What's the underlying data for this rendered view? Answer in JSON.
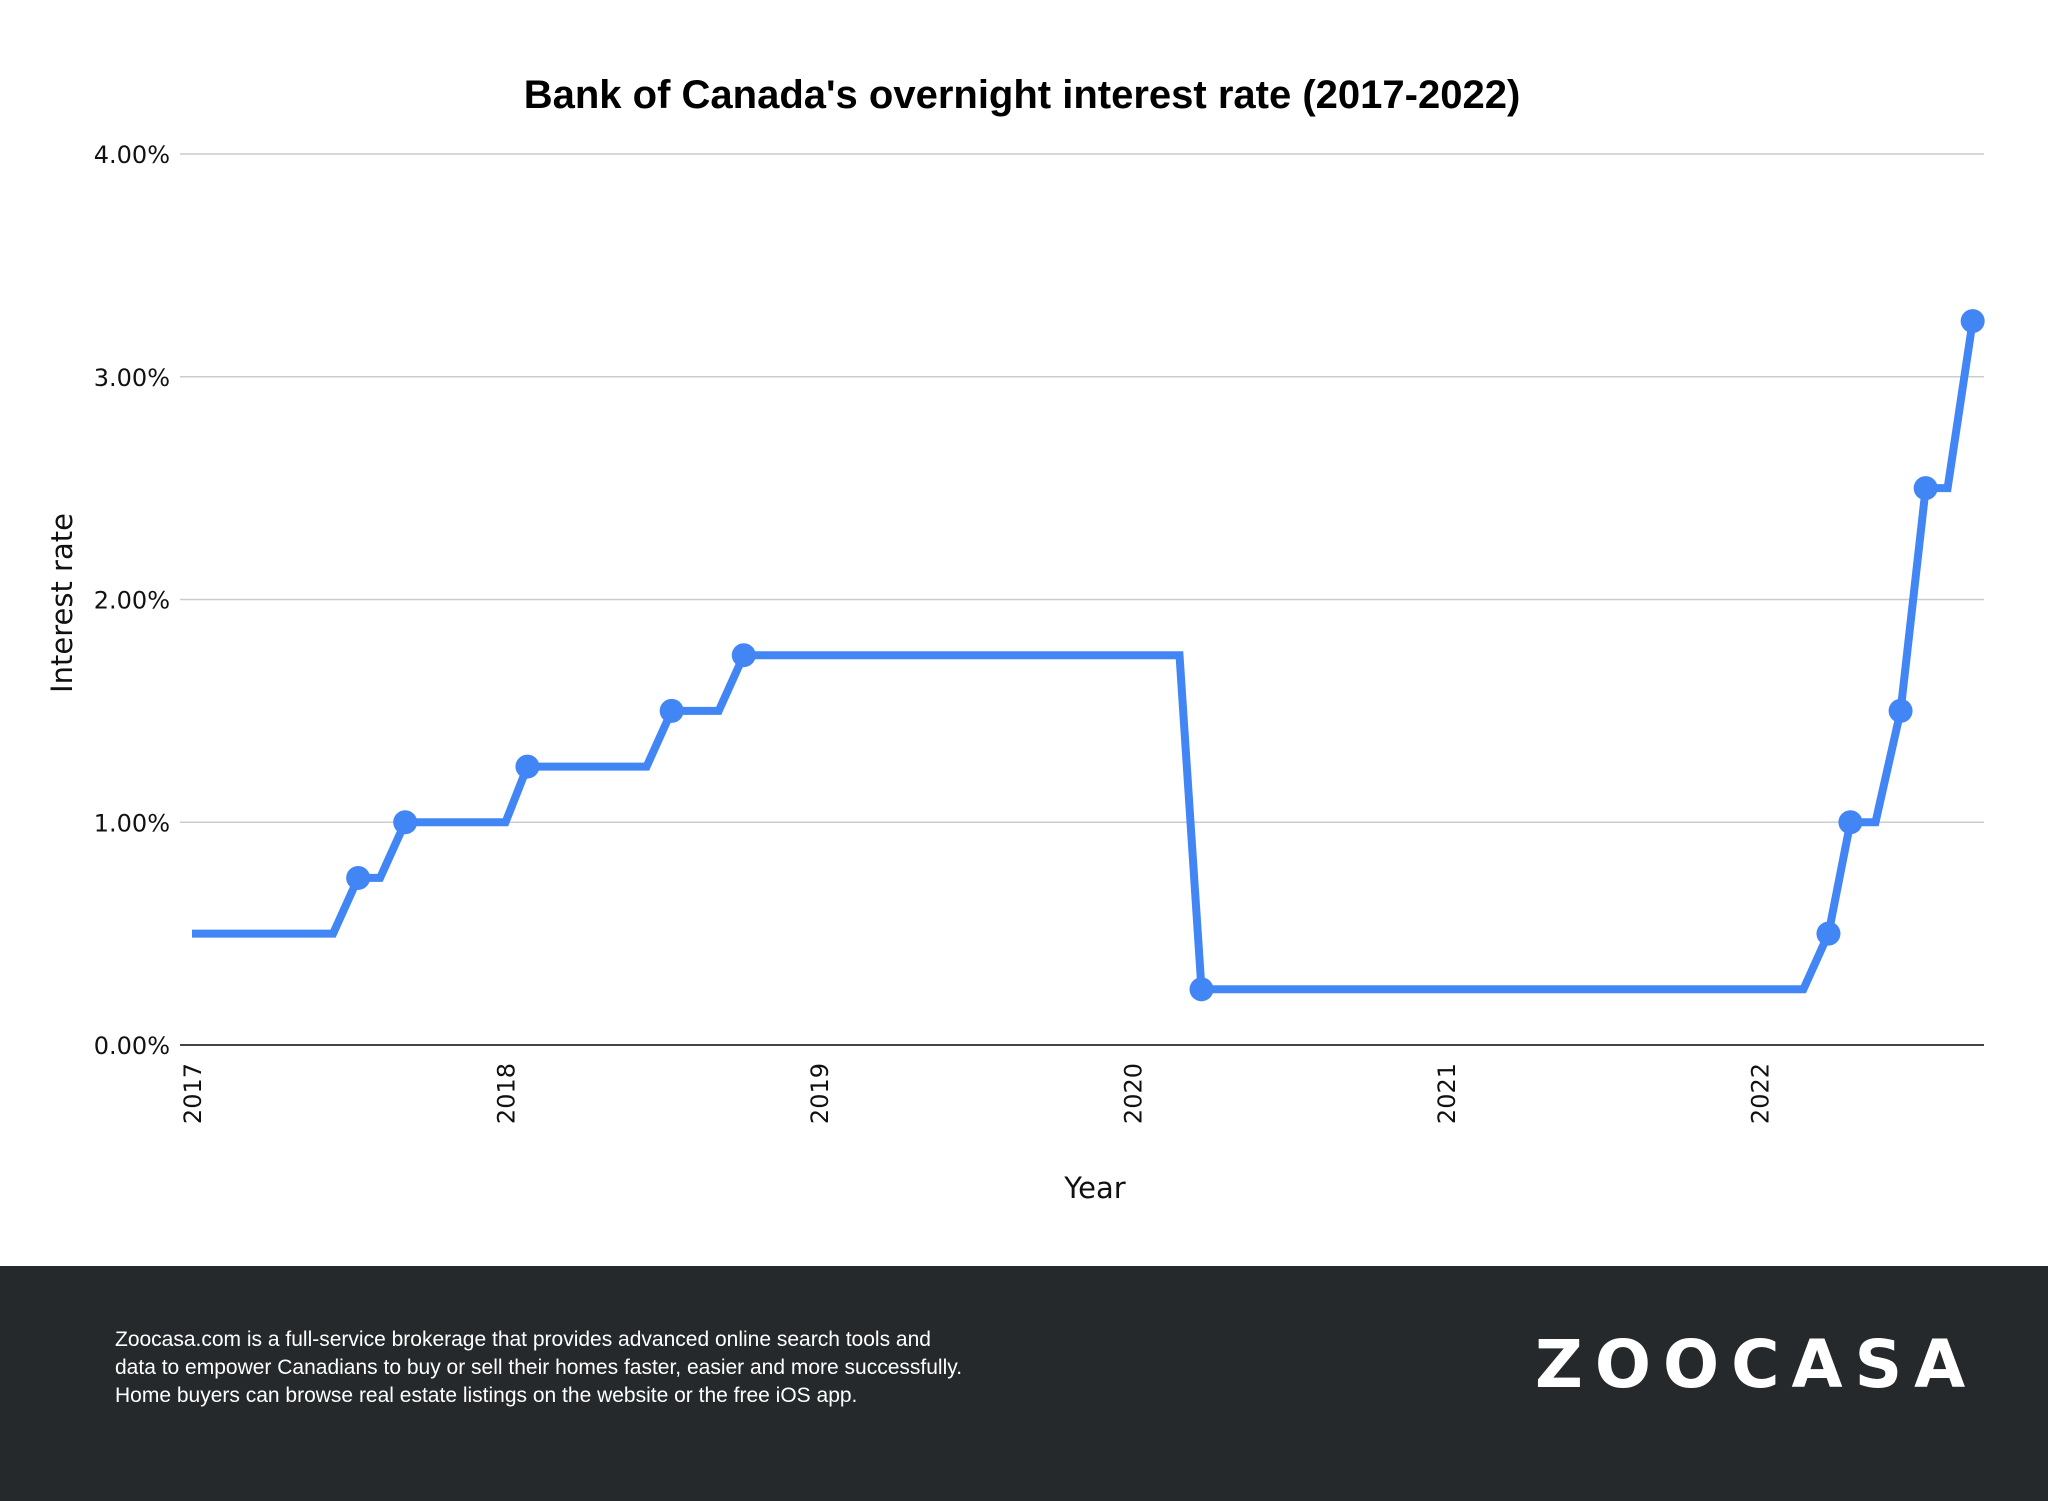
{
  "chart_data": {
    "type": "line",
    "title": "Bank of Canada's overnight interest rate (2017-2022)",
    "xlabel": "Year",
    "ylabel": "Interest rate",
    "xlim": [
      2017,
      2022.72
    ],
    "ylim": [
      0,
      4
    ],
    "x_ticks": [
      "2017",
      "2018",
      "2019",
      "2020",
      "2021",
      "2022"
    ],
    "y_ticks": [
      "0.00%",
      "1.00%",
      "2.00%",
      "3.00%",
      "4.00%"
    ],
    "grid": "horizontal",
    "color": "#4285f4",
    "points": [
      {
        "x": 2017.0,
        "y": 0.5,
        "marker": false
      },
      {
        "x": 2017.45,
        "y": 0.5,
        "marker": false
      },
      {
        "x": 2017.53,
        "y": 0.75,
        "marker": true
      },
      {
        "x": 2017.6,
        "y": 0.75,
        "marker": false
      },
      {
        "x": 2017.68,
        "y": 1.0,
        "marker": true
      },
      {
        "x": 2018.0,
        "y": 1.0,
        "marker": false
      },
      {
        "x": 2018.07,
        "y": 1.25,
        "marker": true
      },
      {
        "x": 2018.45,
        "y": 1.25,
        "marker": false
      },
      {
        "x": 2018.53,
        "y": 1.5,
        "marker": true
      },
      {
        "x": 2018.68,
        "y": 1.5,
        "marker": false
      },
      {
        "x": 2018.76,
        "y": 1.75,
        "marker": true
      },
      {
        "x": 2020.15,
        "y": 1.75,
        "marker": false
      },
      {
        "x": 2020.22,
        "y": 0.25,
        "marker": true
      },
      {
        "x": 2022.14,
        "y": 0.25,
        "marker": false
      },
      {
        "x": 2022.22,
        "y": 0.5,
        "marker": true
      },
      {
        "x": 2022.29,
        "y": 1.0,
        "marker": true
      },
      {
        "x": 2022.37,
        "y": 1.0,
        "marker": false
      },
      {
        "x": 2022.45,
        "y": 1.5,
        "marker": true
      },
      {
        "x": 2022.53,
        "y": 2.5,
        "marker": true
      },
      {
        "x": 2022.6,
        "y": 2.5,
        "marker": false
      },
      {
        "x": 2022.68,
        "y": 3.25,
        "marker": true
      }
    ]
  },
  "footer": {
    "text_lines": [
      "Zoocasa.com is a full-service brokerage that provides advanced online search tools and",
      "data to empower Canadians to buy or sell their homes faster, easier and more successfully.",
      "Home buyers can browse real estate listings on the website or the free iOS app."
    ],
    "logo": "ZOOCASA"
  }
}
